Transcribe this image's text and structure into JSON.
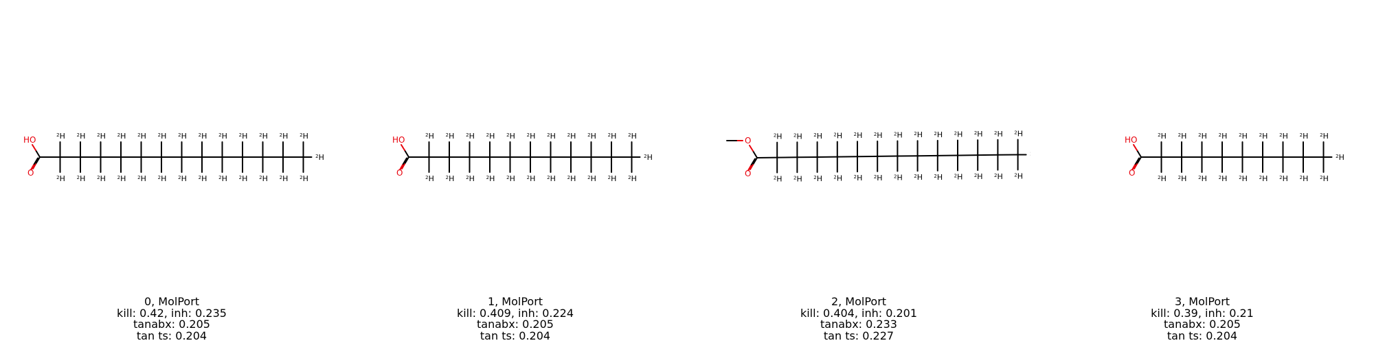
{
  "molecules": [
    {
      "acid_group": "carboxylic",
      "hydroxyl_label": "HO",
      "carbonyl_label": "O",
      "chain_carbons": 13,
      "isotope_label": "2",
      "deuterium_label": "H",
      "legend": {
        "name": "0, MolPort",
        "kill_inh": "kill: 0.42, inh: 0.235",
        "tanabx": "tanabx: 0.205",
        "tants": "tan ts: 0.204"
      }
    },
    {
      "acid_group": "carboxylic",
      "hydroxyl_label": "HO",
      "carbonyl_label": "O",
      "chain_carbons": 11,
      "isotope_label": "2",
      "deuterium_label": "H",
      "legend": {
        "name": "1, MolPort",
        "kill_inh": "kill: 0.409, inh: 0.224",
        "tanabx": "tanabx: 0.205",
        "tants": "tan ts: 0.204"
      }
    },
    {
      "acid_group": "methyl-ester",
      "hydroxyl_label": "O",
      "carbonyl_label": "O",
      "chain_carbons": 13,
      "isotope_label": "2",
      "deuterium_label": "H",
      "legend": {
        "name": "2, MolPort",
        "kill_inh": "kill: 0.404, inh: 0.201",
        "tanabx": "tanabx: 0.233",
        "tants": "tan ts: 0.227"
      }
    },
    {
      "acid_group": "carboxylic",
      "hydroxyl_label": "HO",
      "carbonyl_label": "O",
      "chain_carbons": 9,
      "isotope_label": "2",
      "deuterium_label": "H",
      "legend": {
        "name": "3, MolPort",
        "kill_inh": "kill: 0.39, inh: 0.21",
        "tanabx": "tanabx: 0.205",
        "tants": "tan ts: 0.204"
      }
    }
  ],
  "colors": {
    "heteroatom": "#e8000b",
    "bond": "#000000"
  }
}
